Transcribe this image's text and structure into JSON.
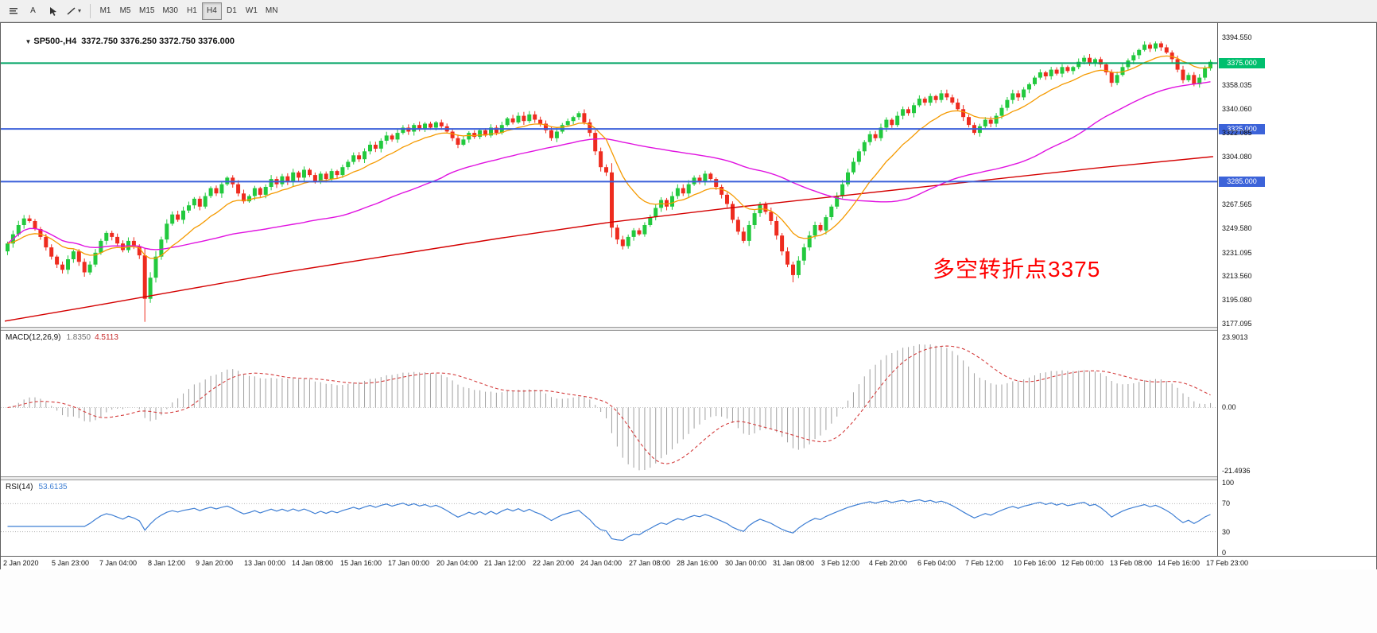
{
  "toolbar": {
    "text_tool_label": "A",
    "timeframes": [
      "M1",
      "M5",
      "M15",
      "M30",
      "H1",
      "H4",
      "D1",
      "W1",
      "MN"
    ],
    "selected_timeframe": "H4"
  },
  "chart": {
    "symbol_collapse_icon": "▼",
    "symbol_line": "SP500-,H4  3372.750 3376.250 3372.750 3376.000",
    "annotation": {
      "text": "多空转折点3375",
      "color": "#ff0000"
    },
    "price_range": {
      "max": 3394.55,
      "min": 3177.095
    },
    "hlines": [
      {
        "price": 3375.0,
        "tag": "3375.000",
        "color": "#00a465",
        "tag_color": "#00bf6e",
        "width": 2
      },
      {
        "price": 3325.0,
        "tag": "3325.000",
        "color": "#3a5fd9",
        "tag_color": "#3c63d9",
        "width": 2
      },
      {
        "price": 3285.0,
        "tag": "3285.000",
        "color": "#3a5fd9",
        "tag_color": "#3c63d9",
        "width": 2
      }
    ],
    "price_axis_labels": [
      {
        "price": 3394.55,
        "label": "3394.550"
      },
      {
        "price": 3358.035,
        "label": "3358.035"
      },
      {
        "price": 3340.06,
        "label": "3340.060"
      },
      {
        "price": 3322.085,
        "label": "3322.085"
      },
      {
        "price": 3304.08,
        "label": "3304.080"
      },
      {
        "price": 3267.565,
        "label": "3267.565"
      },
      {
        "price": 3249.58,
        "label": "3249.580"
      },
      {
        "price": 3231.095,
        "label": "3231.095"
      },
      {
        "price": 3213.56,
        "label": "3213.560"
      },
      {
        "price": 3195.08,
        "label": "3195.080"
      },
      {
        "price": 3177.095,
        "label": "3177.095"
      }
    ]
  },
  "chart_data": {
    "type": "candlestick",
    "symbol": "SP500-",
    "timeframe": "H4",
    "ohlc_current": {
      "open": 3372.75,
      "high": 3376.25,
      "low": 3372.75,
      "close": 3376.0
    },
    "ylim": [
      3177.095,
      3394.55
    ],
    "up_color": "#22c93e",
    "down_color": "#ee2c1f",
    "closes": [
      3238,
      3245,
      3252,
      3257,
      3255,
      3249,
      3243,
      3235,
      3228,
      3222,
      3218,
      3226,
      3232,
      3224,
      3216,
      3222,
      3231,
      3240,
      3246,
      3243,
      3238,
      3233,
      3240,
      3236,
      3229,
      3196,
      3212,
      3228,
      3241,
      3253,
      3260,
      3256,
      3263,
      3267,
      3272,
      3266,
      3274,
      3280,
      3276,
      3283,
      3288,
      3283,
      3276,
      3270,
      3274,
      3280,
      3275,
      3281,
      3287,
      3283,
      3289,
      3285,
      3292,
      3288,
      3294,
      3290,
      3285,
      3291,
      3287,
      3293,
      3290,
      3296,
      3300,
      3305,
      3302,
      3308,
      3313,
      3310,
      3316,
      3320,
      3317,
      3322,
      3326,
      3323,
      3328,
      3325,
      3329,
      3326,
      3330,
      3327,
      3323,
      3318,
      3313,
      3317,
      3322,
      3319,
      3324,
      3320,
      3326,
      3322,
      3328,
      3333,
      3330,
      3335,
      3331,
      3336,
      3332,
      3329,
      3324,
      3318,
      3323,
      3328,
      3331,
      3334,
      3337,
      3330,
      3322,
      3308,
      3296,
      3292,
      3250,
      3241,
      3236,
      3243,
      3248,
      3245,
      3252,
      3258,
      3265,
      3271,
      3266,
      3274,
      3280,
      3276,
      3283,
      3288,
      3285,
      3291,
      3287,
      3281,
      3275,
      3268,
      3256,
      3247,
      3240,
      3252,
      3261,
      3268,
      3262,
      3255,
      3244,
      3232,
      3222,
      3214,
      3225,
      3235,
      3244,
      3252,
      3248,
      3258,
      3266,
      3274,
      3283,
      3292,
      3300,
      3308,
      3315,
      3321,
      3318,
      3326,
      3332,
      3328,
      3335,
      3340,
      3337,
      3343,
      3348,
      3345,
      3350,
      3347,
      3352,
      3349,
      3345,
      3340,
      3334,
      3328,
      3322,
      3327,
      3332,
      3329,
      3335,
      3341,
      3347,
      3352,
      3349,
      3355,
      3359,
      3364,
      3368,
      3365,
      3370,
      3367,
      3372,
      3369,
      3372,
      3376,
      3379,
      3375,
      3378,
      3374,
      3368,
      3360,
      3366,
      3372,
      3377,
      3381,
      3385,
      3389,
      3386,
      3390,
      3387,
      3383,
      3378,
      3370,
      3362,
      3366,
      3359,
      3364,
      3371,
      3376
    ],
    "lows_override": {
      "25": 3178.5,
      "143": 3208.5
    },
    "overlays": {
      "ema_fast": {
        "period": 13,
        "color": "#f59a00"
      },
      "sma_mid": {
        "period": 55,
        "color": "#e012e0"
      },
      "slow_line_color": "#d40000",
      "slow_line_anchors": [
        [
          0,
          3179
        ],
        [
          0.07,
          3190
        ],
        [
          0.15,
          3203
        ],
        [
          0.23,
          3216
        ],
        [
          0.32,
          3229
        ],
        [
          0.41,
          3242
        ],
        [
          0.5,
          3254
        ],
        [
          0.6,
          3265
        ],
        [
          0.7,
          3275
        ],
        [
          0.8,
          3285
        ],
        [
          0.9,
          3295
        ],
        [
          1,
          3304
        ]
      ]
    },
    "time_labels": [
      "2 Jan 2020",
      "5 Jan 23:00",
      "7 Jan 04:00",
      "8 Jan 12:00",
      "9 Jan 20:00",
      "13 Jan 00:00",
      "14 Jan 08:00",
      "15 Jan 16:00",
      "17 Jan 00:00",
      "20 Jan 04:00",
      "21 Jan 12:00",
      "22 Jan 20:00",
      "24 Jan 04:00",
      "27 Jan 08:00",
      "28 Jan 16:00",
      "30 Jan 00:00",
      "31 Jan 08:00",
      "3 Feb 12:00",
      "4 Feb 20:00",
      "6 Feb 04:00",
      "7 Feb 12:00",
      "10 Feb 16:00",
      "12 Feb 00:00",
      "13 Feb 08:00",
      "14 Feb 16:00",
      "17 Feb 23:00"
    ]
  },
  "macd": {
    "label": "MACD(12,26,9)",
    "value": "1.8350",
    "signal_value": "4.5113",
    "params": {
      "fast": 12,
      "slow": 26,
      "signal": 9
    },
    "histogram_color": "#a0a0a0",
    "signal_color": "#d43c3c",
    "axis_labels": [
      {
        "value": 23.9013,
        "label": "23.9013"
      },
      {
        "value": 0,
        "label": "0.00"
      },
      {
        "value": -21.4936,
        "label": "-21.4936"
      }
    ]
  },
  "rsi": {
    "label": "RSI(14)",
    "value": "53.6135",
    "period": 14,
    "levels": [
      70,
      30
    ],
    "line_color": "#3f7fd4",
    "axis_labels": [
      {
        "value": 100,
        "label": "100"
      },
      {
        "value": 70,
        "label": "70"
      },
      {
        "value": 30,
        "label": "30"
      },
      {
        "value": 0,
        "label": "0"
      }
    ]
  }
}
